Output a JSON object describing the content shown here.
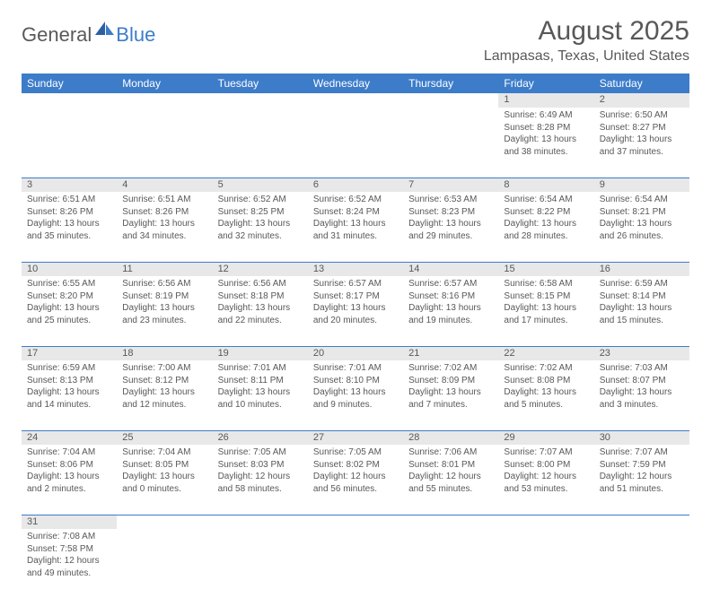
{
  "brand": {
    "part1": "General",
    "part2": "Blue"
  },
  "title": "August 2025",
  "location": "Lampasas, Texas, United States",
  "colors": {
    "header_bg": "#3d7cc9",
    "header_text": "#ffffff",
    "daynum_bg": "#e8e8e8",
    "text": "#57585a",
    "rule": "#3d7cc9",
    "logo_gray": "#58595b",
    "logo_blue": "#3d7cc9"
  },
  "typography": {
    "title_fontsize": 30,
    "location_fontsize": 16,
    "dayheader_fontsize": 12,
    "daynum_fontsize": 11,
    "cell_fontsize": 10
  },
  "day_headers": [
    "Sunday",
    "Monday",
    "Tuesday",
    "Wednesday",
    "Thursday",
    "Friday",
    "Saturday"
  ],
  "weeks": [
    [
      null,
      null,
      null,
      null,
      null,
      {
        "n": "1",
        "sr": "Sunrise: 6:49 AM",
        "ss": "Sunset: 8:28 PM",
        "d1": "Daylight: 13 hours",
        "d2": "and 38 minutes."
      },
      {
        "n": "2",
        "sr": "Sunrise: 6:50 AM",
        "ss": "Sunset: 8:27 PM",
        "d1": "Daylight: 13 hours",
        "d2": "and 37 minutes."
      }
    ],
    [
      {
        "n": "3",
        "sr": "Sunrise: 6:51 AM",
        "ss": "Sunset: 8:26 PM",
        "d1": "Daylight: 13 hours",
        "d2": "and 35 minutes."
      },
      {
        "n": "4",
        "sr": "Sunrise: 6:51 AM",
        "ss": "Sunset: 8:26 PM",
        "d1": "Daylight: 13 hours",
        "d2": "and 34 minutes."
      },
      {
        "n": "5",
        "sr": "Sunrise: 6:52 AM",
        "ss": "Sunset: 8:25 PM",
        "d1": "Daylight: 13 hours",
        "d2": "and 32 minutes."
      },
      {
        "n": "6",
        "sr": "Sunrise: 6:52 AM",
        "ss": "Sunset: 8:24 PM",
        "d1": "Daylight: 13 hours",
        "d2": "and 31 minutes."
      },
      {
        "n": "7",
        "sr": "Sunrise: 6:53 AM",
        "ss": "Sunset: 8:23 PM",
        "d1": "Daylight: 13 hours",
        "d2": "and 29 minutes."
      },
      {
        "n": "8",
        "sr": "Sunrise: 6:54 AM",
        "ss": "Sunset: 8:22 PM",
        "d1": "Daylight: 13 hours",
        "d2": "and 28 minutes."
      },
      {
        "n": "9",
        "sr": "Sunrise: 6:54 AM",
        "ss": "Sunset: 8:21 PM",
        "d1": "Daylight: 13 hours",
        "d2": "and 26 minutes."
      }
    ],
    [
      {
        "n": "10",
        "sr": "Sunrise: 6:55 AM",
        "ss": "Sunset: 8:20 PM",
        "d1": "Daylight: 13 hours",
        "d2": "and 25 minutes."
      },
      {
        "n": "11",
        "sr": "Sunrise: 6:56 AM",
        "ss": "Sunset: 8:19 PM",
        "d1": "Daylight: 13 hours",
        "d2": "and 23 minutes."
      },
      {
        "n": "12",
        "sr": "Sunrise: 6:56 AM",
        "ss": "Sunset: 8:18 PM",
        "d1": "Daylight: 13 hours",
        "d2": "and 22 minutes."
      },
      {
        "n": "13",
        "sr": "Sunrise: 6:57 AM",
        "ss": "Sunset: 8:17 PM",
        "d1": "Daylight: 13 hours",
        "d2": "and 20 minutes."
      },
      {
        "n": "14",
        "sr": "Sunrise: 6:57 AM",
        "ss": "Sunset: 8:16 PM",
        "d1": "Daylight: 13 hours",
        "d2": "and 19 minutes."
      },
      {
        "n": "15",
        "sr": "Sunrise: 6:58 AM",
        "ss": "Sunset: 8:15 PM",
        "d1": "Daylight: 13 hours",
        "d2": "and 17 minutes."
      },
      {
        "n": "16",
        "sr": "Sunrise: 6:59 AM",
        "ss": "Sunset: 8:14 PM",
        "d1": "Daylight: 13 hours",
        "d2": "and 15 minutes."
      }
    ],
    [
      {
        "n": "17",
        "sr": "Sunrise: 6:59 AM",
        "ss": "Sunset: 8:13 PM",
        "d1": "Daylight: 13 hours",
        "d2": "and 14 minutes."
      },
      {
        "n": "18",
        "sr": "Sunrise: 7:00 AM",
        "ss": "Sunset: 8:12 PM",
        "d1": "Daylight: 13 hours",
        "d2": "and 12 minutes."
      },
      {
        "n": "19",
        "sr": "Sunrise: 7:01 AM",
        "ss": "Sunset: 8:11 PM",
        "d1": "Daylight: 13 hours",
        "d2": "and 10 minutes."
      },
      {
        "n": "20",
        "sr": "Sunrise: 7:01 AM",
        "ss": "Sunset: 8:10 PM",
        "d1": "Daylight: 13 hours",
        "d2": "and 9 minutes."
      },
      {
        "n": "21",
        "sr": "Sunrise: 7:02 AM",
        "ss": "Sunset: 8:09 PM",
        "d1": "Daylight: 13 hours",
        "d2": "and 7 minutes."
      },
      {
        "n": "22",
        "sr": "Sunrise: 7:02 AM",
        "ss": "Sunset: 8:08 PM",
        "d1": "Daylight: 13 hours",
        "d2": "and 5 minutes."
      },
      {
        "n": "23",
        "sr": "Sunrise: 7:03 AM",
        "ss": "Sunset: 8:07 PM",
        "d1": "Daylight: 13 hours",
        "d2": "and 3 minutes."
      }
    ],
    [
      {
        "n": "24",
        "sr": "Sunrise: 7:04 AM",
        "ss": "Sunset: 8:06 PM",
        "d1": "Daylight: 13 hours",
        "d2": "and 2 minutes."
      },
      {
        "n": "25",
        "sr": "Sunrise: 7:04 AM",
        "ss": "Sunset: 8:05 PM",
        "d1": "Daylight: 13 hours",
        "d2": "and 0 minutes."
      },
      {
        "n": "26",
        "sr": "Sunrise: 7:05 AM",
        "ss": "Sunset: 8:03 PM",
        "d1": "Daylight: 12 hours",
        "d2": "and 58 minutes."
      },
      {
        "n": "27",
        "sr": "Sunrise: 7:05 AM",
        "ss": "Sunset: 8:02 PM",
        "d1": "Daylight: 12 hours",
        "d2": "and 56 minutes."
      },
      {
        "n": "28",
        "sr": "Sunrise: 7:06 AM",
        "ss": "Sunset: 8:01 PM",
        "d1": "Daylight: 12 hours",
        "d2": "and 55 minutes."
      },
      {
        "n": "29",
        "sr": "Sunrise: 7:07 AM",
        "ss": "Sunset: 8:00 PM",
        "d1": "Daylight: 12 hours",
        "d2": "and 53 minutes."
      },
      {
        "n": "30",
        "sr": "Sunrise: 7:07 AM",
        "ss": "Sunset: 7:59 PM",
        "d1": "Daylight: 12 hours",
        "d2": "and 51 minutes."
      }
    ],
    [
      {
        "n": "31",
        "sr": "Sunrise: 7:08 AM",
        "ss": "Sunset: 7:58 PM",
        "d1": "Daylight: 12 hours",
        "d2": "and 49 minutes."
      },
      null,
      null,
      null,
      null,
      null,
      null
    ]
  ]
}
